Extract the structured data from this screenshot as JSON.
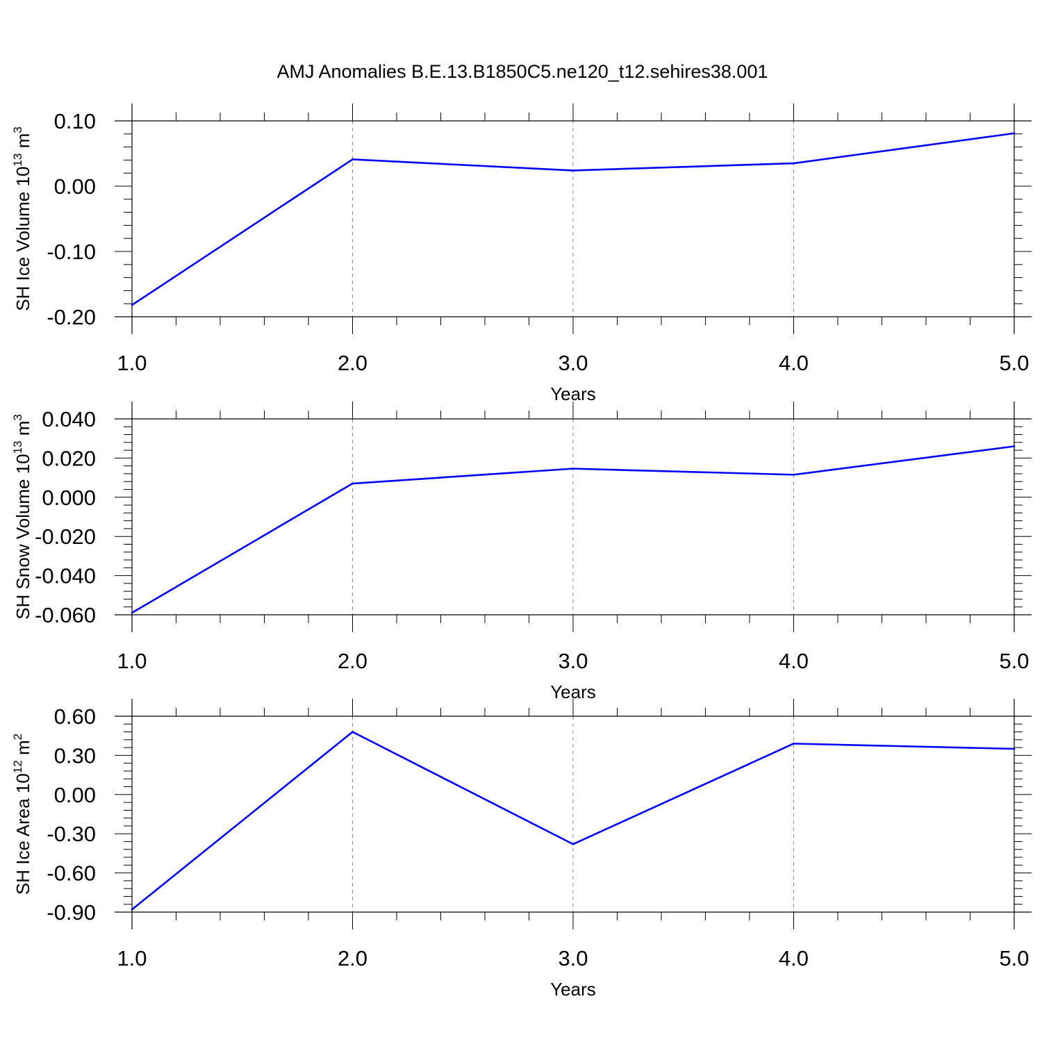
{
  "title": "AMJ Anomalies B.E.13.B1850C5.ne120_t12.sehires38.001",
  "colors": {
    "series": "#0000ff",
    "axis": "#000000",
    "grid": "#888888"
  },
  "chart_data": [
    {
      "type": "line",
      "ylabel": {
        "text": "SH Ice Volume 10",
        "sup1": "13",
        "mid": " m",
        "sup2": "3"
      },
      "xlabel": "Years",
      "xlim": [
        1.0,
        5.0
      ],
      "ylim": [
        -0.2,
        0.1
      ],
      "x_ticks": [
        "1.0",
        "2.0",
        "3.0",
        "4.0",
        "5.0"
      ],
      "y_ticks": [
        -0.2,
        -0.1,
        0.0,
        0.1
      ],
      "y_tick_labels": [
        "-0.20",
        "-0.10",
        "0.00",
        "0.10"
      ],
      "x": [
        1,
        2,
        3,
        4,
        5
      ],
      "values": [
        -0.182,
        0.041,
        0.024,
        0.035,
        0.081
      ]
    },
    {
      "type": "line",
      "ylabel": {
        "text": "SH Snow Volume 10",
        "sup1": "13",
        "mid": " m",
        "sup2": "3"
      },
      "xlabel": "Years",
      "xlim": [
        1.0,
        5.0
      ],
      "ylim": [
        -0.06,
        0.04
      ],
      "x_ticks": [
        "1.0",
        "2.0",
        "3.0",
        "4.0",
        "5.0"
      ],
      "y_ticks": [
        -0.06,
        -0.04,
        -0.02,
        0.0,
        0.02,
        0.04
      ],
      "y_tick_labels": [
        "-0.060",
        "-0.040",
        "-0.020",
        "0.000",
        "0.020",
        "0.040"
      ],
      "x": [
        1,
        2,
        3,
        4,
        5
      ],
      "values": [
        -0.059,
        0.007,
        0.0146,
        0.0115,
        0.026
      ]
    },
    {
      "type": "line",
      "ylabel": {
        "text": "SH Ice Area 10",
        "sup1": "12",
        "mid": " m",
        "sup2": "2"
      },
      "xlabel": "Years",
      "xlim": [
        1.0,
        5.0
      ],
      "ylim": [
        -0.9,
        0.6
      ],
      "x_ticks": [
        "1.0",
        "2.0",
        "3.0",
        "4.0",
        "5.0"
      ],
      "y_ticks": [
        -0.9,
        -0.6,
        -0.3,
        0.0,
        0.3,
        0.6
      ],
      "y_tick_labels": [
        "-0.90",
        "-0.60",
        "-0.30",
        "0.00",
        "0.30",
        "0.60"
      ],
      "x": [
        1,
        2,
        3,
        4,
        5
      ],
      "values": [
        -0.88,
        0.48,
        -0.38,
        0.39,
        0.35
      ]
    }
  ]
}
